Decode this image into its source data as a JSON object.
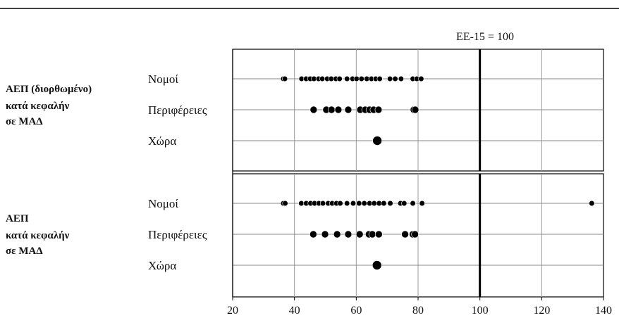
{
  "chart_data": {
    "type": "scatter",
    "xlim": [
      20,
      140
    ],
    "x_ticks": [
      20,
      40,
      60,
      80,
      100,
      120,
      140
    ],
    "vertical_grid": true,
    "reference_line": {
      "x": 100,
      "label": "ΕΕ-15 = 100"
    },
    "row_labels": [
      "Νομοί",
      "Περιφέρειες",
      "Χώρα"
    ],
    "panels": [
      {
        "group_label": [
          "ΑΕΠ (διορθωμένο)",
          "κατά κεφαλήν",
          "σε ΜΑΔ"
        ],
        "series": [
          {
            "row": "Νομοί",
            "values": [
              36.4,
              36.9,
              42.3,
              43.8,
              45.1,
              46.3,
              47.8,
              49.0,
              50.6,
              51.9,
              53.4,
              54.6,
              57.0,
              58.8,
              60.1,
              61.7,
              63.4,
              64.9,
              66.3,
              67.6,
              70.9,
              72.6,
              74.5,
              78.3,
              79.6,
              81.0
            ]
          },
          {
            "row": "Περιφέρειες",
            "values": [
              46.2,
              50.3,
              52.0,
              54.2,
              57.4,
              61.3,
              62.9,
              64.3,
              65.6,
              67.2,
              78.6,
              79.1
            ]
          },
          {
            "row": "Χώρα",
            "values": [
              66.8
            ]
          }
        ]
      },
      {
        "group_label": [
          "ΑΕΠ",
          "κατά κεφαλήν",
          "σε ΜΑΔ"
        ],
        "series": [
          {
            "row": "Νομοί",
            "values": [
              36.4,
              37.0,
              42.2,
              43.8,
              45.2,
              46.5,
              47.9,
              49.2,
              50.9,
              52.2,
              53.6,
              54.8,
              57.0,
              59.0,
              60.9,
              62.6,
              64.3,
              65.8,
              67.4,
              68.9,
              71.0,
              74.3,
              75.5,
              78.3,
              81.3,
              136.2
            ]
          },
          {
            "row": "Περιφέρειες",
            "values": [
              46.1,
              49.9,
              53.8,
              57.4,
              61.1,
              64.1,
              65.2,
              67.3,
              75.8,
              78.3,
              79.0
            ]
          },
          {
            "row": "Χώρα",
            "values": [
              66.7
            ]
          }
        ]
      }
    ]
  }
}
